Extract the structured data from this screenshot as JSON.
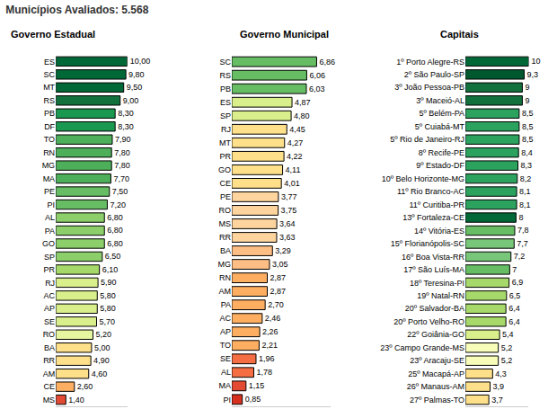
{
  "title": "Municípios Avaliados: 5.568",
  "chart_data": [
    {
      "type": "bar",
      "orientation": "horizontal",
      "title": "Governo Estadual",
      "categories": [
        "ES",
        "SC",
        "MT",
        "RS",
        "PB",
        "DF",
        "TO",
        "RN",
        "MG",
        "MA",
        "PE",
        "PI",
        "AL",
        "PA",
        "GO",
        "SP",
        "PR",
        "RJ",
        "AC",
        "AP",
        "SE",
        "RO",
        "BA",
        "RR",
        "AM",
        "CE",
        "MS"
      ],
      "values": [
        10.0,
        9.8,
        9.5,
        9.0,
        8.3,
        8.3,
        7.9,
        7.8,
        7.8,
        7.7,
        7.5,
        7.2,
        6.8,
        6.8,
        6.8,
        6.5,
        6.1,
        5.9,
        5.8,
        5.8,
        5.7,
        5.2,
        5.0,
        4.9,
        4.6,
        2.6,
        1.4
      ],
      "value_labels": [
        "10,00",
        "9,80",
        "9,50",
        "9,00",
        "8,30",
        "8,30",
        "7,90",
        "7,80",
        "7,80",
        "7,70",
        "7,50",
        "7,20",
        "6,80",
        "6,80",
        "6,80",
        "6,50",
        "6,10",
        "5,90",
        "5,80",
        "5,80",
        "5,70",
        "5,20",
        "5,00",
        "4,90",
        "4,60",
        "2,60",
        "1,40"
      ],
      "colors": [
        "#006837",
        "#006837",
        "#006837",
        "#12703c",
        "#1a9850",
        "#1a9850",
        "#4daf5a",
        "#4daf5a",
        "#4daf5a",
        "#4daf5a",
        "#66bd63",
        "#66bd63",
        "#8ccf6a",
        "#8ccf6a",
        "#8ccf6a",
        "#8ccf6a",
        "#a6d96a",
        "#d9ef8b",
        "#d9ef8b",
        "#d9ef8b",
        "#d9ef8b",
        "#e6f5a0",
        "#fee08b",
        "#fee08b",
        "#fee08b",
        "#fdae61",
        "#e34a33"
      ],
      "xlim": [
        0,
        10
      ],
      "data_labels": true,
      "tick_labels": "y"
    },
    {
      "type": "bar",
      "orientation": "horizontal",
      "title": "Governo Municipal",
      "categories": [
        "SC",
        "RS",
        "PB",
        "ES",
        "SP",
        "RJ",
        "MT",
        "PR",
        "GO",
        "CE",
        "PE",
        "RO",
        "MS",
        "RR",
        "BA",
        "MG",
        "RN",
        "AM",
        "PA",
        "AC",
        "AP",
        "TO",
        "SE",
        "AL",
        "MA",
        "PI"
      ],
      "values": [
        6.86,
        6.06,
        6.03,
        4.87,
        4.8,
        4.45,
        4.27,
        4.22,
        4.11,
        4.01,
        3.77,
        3.75,
        3.64,
        3.63,
        3.29,
        3.05,
        2.87,
        2.87,
        2.7,
        2.46,
        2.26,
        2.21,
        1.96,
        1.78,
        1.15,
        0.85
      ],
      "value_labels": [
        "6,86",
        "6,06",
        "6,03",
        "4,87",
        "4,80",
        "4,45",
        "4,27",
        "4,22",
        "4,11",
        "4,01",
        "3,77",
        "3,75",
        "3,64",
        "3,63",
        "3,29",
        "3,05",
        "2,87",
        "2,87",
        "2,70",
        "2,46",
        "2,26",
        "2,21",
        "1,96",
        "1,78",
        "1,15",
        "0,85"
      ],
      "colors": [
        "#66bd63",
        "#66bd63",
        "#66bd63",
        "#d9ef8b",
        "#d9ef8b",
        "#fee08b",
        "#fee08b",
        "#fee08b",
        "#fee08b",
        "#fee08b",
        "#fdd49e",
        "#fdd49e",
        "#fdd49e",
        "#fdd49e",
        "#fdbe85",
        "#fdbe85",
        "#fdae61",
        "#fdae61",
        "#fdae61",
        "#fdae61",
        "#fdae61",
        "#fdae61",
        "#f46d43",
        "#f46d43",
        "#e34a33",
        "#d7301f"
      ],
      "xlim": [
        0,
        8
      ],
      "data_labels": true,
      "tick_labels": "y"
    },
    {
      "type": "bar",
      "orientation": "horizontal",
      "title": "Capitais",
      "categories": [
        "1º Porto Alegre-RS",
        "2º São Paulo-SP",
        "3º João Pessoa-PB",
        "3º Maceió-AL",
        "5º Belém-PA",
        "5º Cuiabá-MT",
        "5º Rio de Janeiro-RJ",
        "8º Recife-PE",
        "9º Estado-DF",
        "10º Belo Horizonte-MG",
        "11º Rio Branco-AC",
        "11º Curitiba-PR",
        "13º Fortaleza-CE",
        "14º Vitória-ES",
        "15º Florianópolis-SC",
        "16º Boa Vista-RR",
        "17º São Luís-MA",
        "18º Teresina-PI",
        "19º Natal-RN",
        "20º Salvador-BA",
        "20º Porto Velho-RO",
        "22º Goiânia-GO",
        "23º Campo Grande-MS",
        "23º Aracaju-SE",
        "25º Macapá-AP",
        "26º Manaus-AM",
        "27º Palmas-TO"
      ],
      "values": [
        10,
        9.3,
        9,
        9,
        8.5,
        8.5,
        8.5,
        8.4,
        8.3,
        8.2,
        8.1,
        8.1,
        8,
        7.8,
        7.7,
        7.2,
        7,
        6.9,
        6.5,
        6.4,
        6.4,
        5.4,
        5.2,
        5.2,
        4.3,
        3.9,
        3.7
      ],
      "value_labels": [
        "10",
        "9,3",
        "9",
        "9",
        "8,5",
        "8,5",
        "8,5",
        "8,4",
        "8,3",
        "8,2",
        "8,1",
        "8,1",
        "8",
        "7,8",
        "7,7",
        "7,2",
        "7",
        "6,9",
        "6,5",
        "6,4",
        "6,4",
        "5,4",
        "5,2",
        "5,2",
        "4,3",
        "3,9",
        "3,7"
      ],
      "colors": [
        "#006837",
        "#00582e",
        "#12703c",
        "#12703c",
        "#2ca25f",
        "#2ca25f",
        "#2ca25f",
        "#2ca25f",
        "#2ca25f",
        "#2ca25f",
        "#2ca25f",
        "#2ca25f",
        "#006837",
        "#66bd63",
        "#78c679",
        "#78c679",
        "#66bd63",
        "#a6d96a",
        "#a6d96a",
        "#a6d96a",
        "#a6d96a",
        "#d9ef8b",
        "#f7fcb9",
        "#f7fcb9",
        "#fee08b",
        "#fee08b",
        "#fee08b"
      ],
      "xlim": [
        0,
        10
      ],
      "data_labels": true,
      "tick_labels": "y"
    }
  ]
}
